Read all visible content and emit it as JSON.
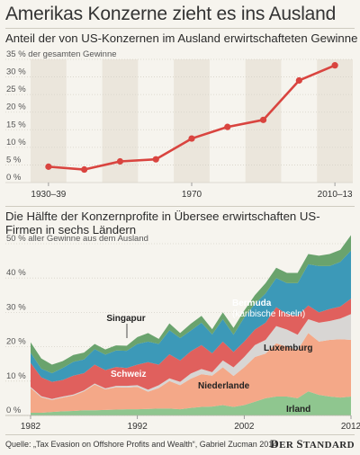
{
  "title": "Amerikas Konzerne zieht es ins Ausland",
  "source": "Quelle: „Tax Evasion on Offshore Profits and Wealth“, Gabriel Zucman 2014",
  "brand": "DER STANDARD",
  "colors": {
    "line": "#d9443f",
    "band": "#ebe6dc",
    "irland": "#8fc68f",
    "niederlande": "#f4a888",
    "luxemburg": "#d8d6d4",
    "schweiz": "#e0605d",
    "bermuda": "#3c99b8",
    "singapur": "#6aa36d"
  },
  "chart_data": [
    {
      "type": "line",
      "title": "Anteil der von US-Konzernen im Ausland erwirtschafteten Gewinne",
      "ylabel": "35 % der gesamten Gewinne",
      "x": [
        "1930–39",
        "1940–49",
        "1950–59",
        "1960–69",
        "1970–79",
        "1980–89",
        "1990–99",
        "2000–09",
        "2010–13"
      ],
      "values": [
        4.5,
        3.7,
        6.0,
        6.6,
        12.5,
        15.8,
        17.8,
        29.0,
        33.3
      ],
      "xtick_labels": [
        "1930–39",
        "1970",
        "2010–13"
      ],
      "xtick_index": [
        0,
        4,
        8
      ],
      "yticks": [
        "35 % der gesamten Gewinne",
        "30 %",
        "25 %",
        "20 %",
        "15 %",
        "10 %",
        "5 %",
        "0 %"
      ],
      "ylim": [
        0,
        35
      ],
      "grid": true
    },
    {
      "type": "area",
      "title": "Die Hälfte der Konzernprofite in Übersee erwirtschaften US-Firmen in sechs Ländern",
      "ylabel": "50 % aller Gewinne aus dem Ausland",
      "x": [
        1982,
        1983,
        1984,
        1985,
        1986,
        1987,
        1988,
        1989,
        1990,
        1991,
        1992,
        1993,
        1994,
        1995,
        1996,
        1997,
        1998,
        1999,
        2000,
        2001,
        2002,
        2003,
        2004,
        2005,
        2006,
        2007,
        2008,
        2009,
        2010,
        2011,
        2012
      ],
      "xtick_labels": [
        "1982",
        "1992",
        "2002",
        "2012"
      ],
      "yticks": [
        "50 % aller Gewinne aus dem Ausland",
        "40 %",
        "30 %",
        "20 %",
        "10 %",
        "0 %"
      ],
      "ylim": [
        0,
        50
      ],
      "stacked": true,
      "series": [
        {
          "name": "Irland",
          "key": "irland",
          "values": [
            0.8,
            0.8,
            1.0,
            1.2,
            1.3,
            1.5,
            1.5,
            1.6,
            1.7,
            1.8,
            1.8,
            1.9,
            2.0,
            2.0,
            1.8,
            2.2,
            2.5,
            2.6,
            3.0,
            2.5,
            3.0,
            4.0,
            5.0,
            5.5,
            5.5,
            5.0,
            7.0,
            6.0,
            5.5,
            5.2,
            5.5
          ]
        },
        {
          "name": "Niederlande",
          "key": "niederlande",
          "values": [
            7.2,
            4.5,
            3.5,
            4.0,
            4.5,
            5.5,
            7.5,
            6.0,
            6.5,
            6.3,
            6.5,
            5.0,
            6.0,
            8.0,
            7.0,
            8.5,
            9.5,
            9.0,
            11.0,
            9.0,
            11.0,
            13.0,
            13.0,
            15.5,
            14.5,
            14.0,
            17.0,
            15.5,
            16.5,
            17.0,
            16.5
          ]
        },
        {
          "name": "Luxemburg",
          "key": "luxemburg",
          "values": [
            0.3,
            0.3,
            0.3,
            0.3,
            0.3,
            0.3,
            0.3,
            0.3,
            0.4,
            0.5,
            0.5,
            0.6,
            0.8,
            0.8,
            1.0,
            1.5,
            1.5,
            1.0,
            2.0,
            2.5,
            3.0,
            3.5,
            4.0,
            5.0,
            5.0,
            4.5,
            4.0,
            5.5,
            5.5,
            6.0,
            7.5
          ]
        },
        {
          "name": "Schweiz",
          "key": "schweiz",
          "values": [
            7.0,
            5.5,
            5.0,
            4.8,
            5.5,
            5.0,
            5.5,
            5.3,
            5.5,
            5.2,
            6.0,
            8.0,
            6.0,
            7.0,
            6.2,
            6.5,
            7.0,
            5.5,
            5.5,
            4.5,
            4.5,
            4.5,
            5.0,
            5.5,
            4.5,
            5.5,
            4.0,
            3.0,
            3.5,
            3.5,
            4.5
          ]
        },
        {
          "name": "Bermuda (karibische Inseln)",
          "key": "bermuda",
          "values": [
            3.0,
            2.5,
            2.5,
            3.5,
            4.0,
            4.0,
            4.5,
            4.5,
            4.8,
            5.0,
            6.0,
            6.0,
            6.0,
            7.0,
            6.5,
            6.0,
            6.5,
            5.5,
            6.5,
            5.0,
            7.0,
            7.5,
            8.5,
            8.5,
            9.0,
            9.5,
            12.0,
            13.5,
            12.5,
            13.0,
            14.0
          ]
        },
        {
          "name": "Singapur",
          "key": "singapur",
          "values": [
            3.0,
            3.0,
            2.5,
            2.0,
            2.0,
            2.0,
            1.5,
            1.5,
            1.5,
            1.5,
            2.0,
            2.5,
            1.5,
            2.0,
            1.5,
            2.0,
            2.0,
            1.5,
            2.0,
            2.0,
            2.0,
            2.5,
            3.0,
            3.0,
            3.0,
            3.0,
            3.0,
            3.0,
            3.5,
            3.5,
            4.5
          ]
        }
      ],
      "labels": {
        "singapur": "Singapur",
        "bermuda_1": "Bermuda",
        "bermuda_2": "(karibische Inseln)",
        "luxemburg": "Luxemburg",
        "schweiz": "Schweiz",
        "niederlande": "Niederlande",
        "irland": "Irland"
      },
      "grid": true
    }
  ]
}
